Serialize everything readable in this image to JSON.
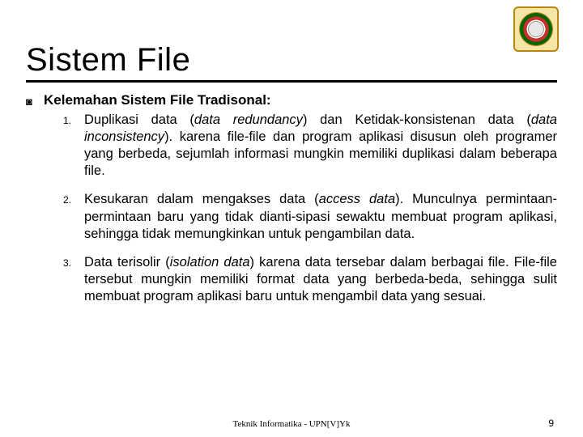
{
  "slide": {
    "title": "Sistem File",
    "subtitle": "Kelemahan Sistem File Tradisonal:",
    "items": [
      {
        "num": "1.",
        "html": "Duplikasi data (<em>data redundancy</em>) dan Ketidak-konsistenan data (<em>data inconsistency</em>). karena file-file dan program aplikasi disusun oleh programer yang berbeda, sejumlah informasi mungkin memiliki duplikasi dalam beberapa file."
      },
      {
        "num": "2.",
        "html": "Kesukaran dalam mengakses data (<em>access data</em>). Munculnya permintaan-permintaan baru yang tidak dianti-sipasi sewaktu membuat program aplikasi, sehingga tidak memungkinkan untuk pengambilan data."
      },
      {
        "num": "3.",
        "html": "Data terisolir (<em>isolation data</em>) karena data tersebar dalam berbagai file. File-file tersebut mungkin memiliki format data yang berbeda-beda, sehingga sulit membuat program aplikasi baru untuk mengambil data yang sesuai."
      }
    ],
    "footer": "Teknik Informatika - UPN[V]Yk",
    "page": "9",
    "colors": {
      "text": "#000000",
      "background": "#ffffff",
      "rule": "#000000",
      "logo_border": "#b8860b",
      "logo_bg": "#f5e6a8"
    },
    "typography": {
      "title_fontsize": 40,
      "subtitle_fontsize": 17,
      "body_fontsize": 16.5,
      "num_fontsize": 12,
      "footer_fontsize": 11
    }
  }
}
